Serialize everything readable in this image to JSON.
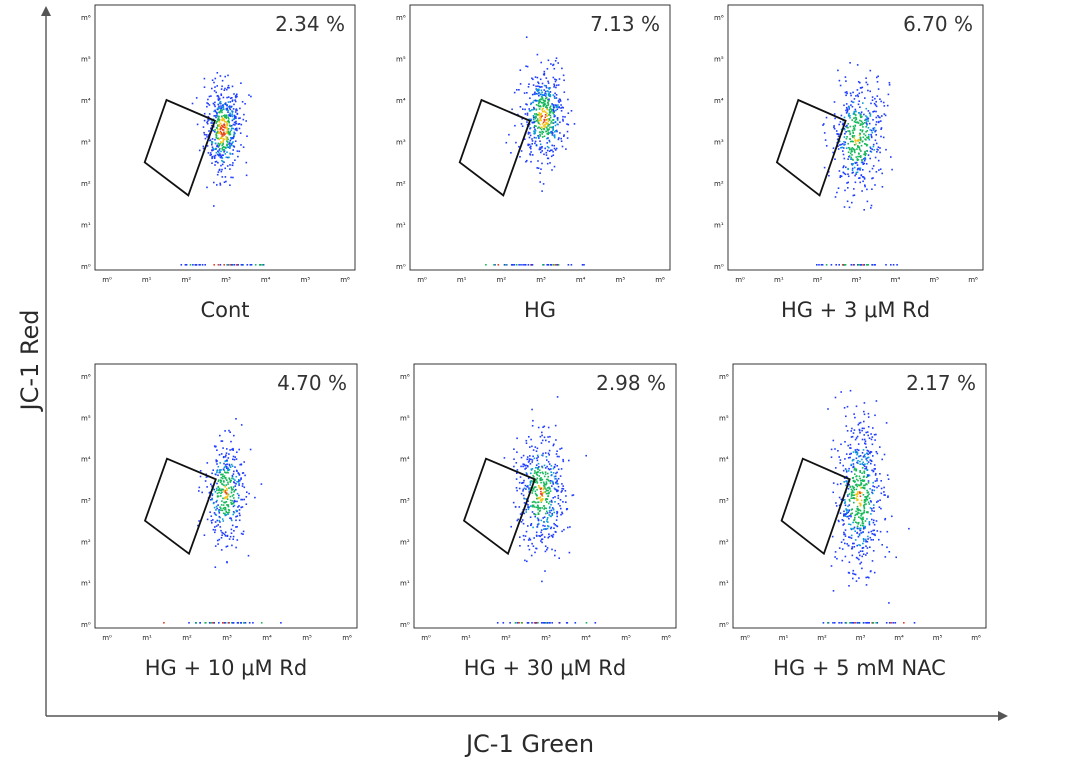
{
  "chart_data": {
    "type": "scatter",
    "subtype": "flow-cytometry-density-plot-grid",
    "x_axis_title": "JC-1 Green",
    "y_axis_title": "JC-1 Red",
    "tick_labels": [
      "m⁰",
      "m¹",
      "m²",
      "m³",
      "m⁴",
      "m⁵",
      "m⁶"
    ],
    "xlim": [
      0,
      6
    ],
    "ylim": [
      0,
      6
    ],
    "gate": {
      "description": "rectangular gate (green-shifted, low red)",
      "vertices": [
        [
          0.95,
          2.5
        ],
        [
          1.5,
          4.0
        ],
        [
          2.72,
          3.5
        ],
        [
          2.05,
          1.7
        ]
      ]
    },
    "panels": [
      {
        "label": "Cont",
        "percent": "2.34 %",
        "cluster": {
          "x": 2.9,
          "y": 3.3,
          "sx": 0.22,
          "sy": 0.55,
          "n": 520,
          "hot": 0.9
        }
      },
      {
        "label": "HG",
        "percent": "7.13 %",
        "cluster": {
          "x": 3.05,
          "y": 3.6,
          "sx": 0.28,
          "sy": 0.55,
          "n": 520,
          "hot": 0.7
        }
      },
      {
        "label": "HG + 3 μM Rd",
        "percent": "6.70 %",
        "cluster": {
          "x": 3.0,
          "y": 3.1,
          "sx": 0.33,
          "sy": 0.65,
          "n": 480,
          "hot": 0.25
        }
      },
      {
        "label": "HG + 10 μM Rd",
        "percent": "4.70 %",
        "cluster": {
          "x": 2.95,
          "y": 3.2,
          "sx": 0.25,
          "sy": 0.6,
          "n": 400,
          "hot": 0.3
        }
      },
      {
        "label": "HG + 30 μM Rd",
        "percent": "2.98 %",
        "cluster": {
          "x": 2.85,
          "y": 3.2,
          "sx": 0.3,
          "sy": 0.7,
          "n": 520,
          "hot": 0.4
        }
      },
      {
        "label": "HG + 5 mM NAC",
        "percent": "2.17 %",
        "cluster": {
          "x": 2.95,
          "y": 3.1,
          "sx": 0.3,
          "sy": 0.85,
          "n": 620,
          "hot": 0.4
        }
      }
    ],
    "density_colors": [
      "#1f3cff",
      "#0a9fd9",
      "#17b85a",
      "#f2c418",
      "#e8401c"
    ]
  }
}
